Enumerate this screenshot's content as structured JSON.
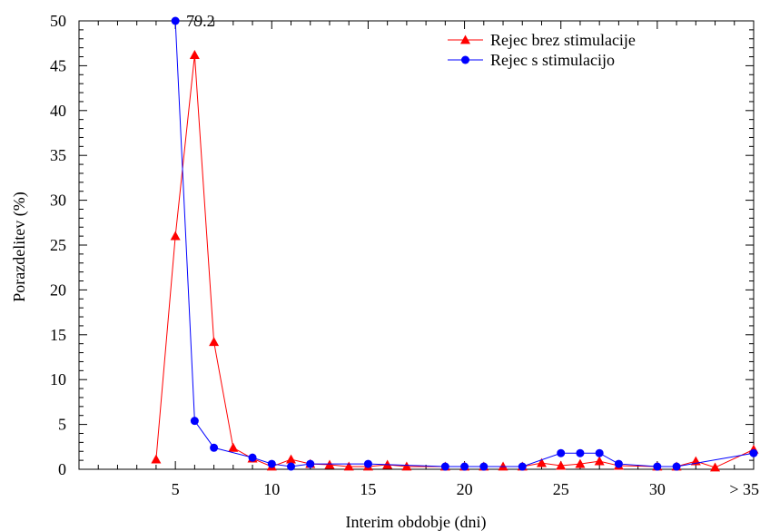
{
  "chart_data": {
    "type": "line",
    "xlabel": "Interim obdobje (dni)",
    "ylabel": "Porazdelitev (%)",
    "xlim": [
      0,
      35
    ],
    "ylim": [
      0,
      50
    ],
    "x_ticks": [
      {
        "value": 5,
        "label": "5"
      },
      {
        "value": 10,
        "label": "10"
      },
      {
        "value": 15,
        "label": "15"
      },
      {
        "value": 20,
        "label": "20"
      },
      {
        "value": 25,
        "label": "25"
      },
      {
        "value": 30,
        "label": "30"
      },
      {
        "value": 35,
        "label": "> 35"
      }
    ],
    "y_ticks": [
      0,
      5,
      10,
      15,
      20,
      25,
      30,
      35,
      40,
      45,
      50
    ],
    "legend_position": "top-right",
    "grid": false,
    "series": [
      {
        "name": "Rejec brez stimulacije",
        "color": "#ff0000",
        "marker": "triangle",
        "x": [
          4,
          5,
          6,
          7,
          8,
          9,
          10,
          11,
          12,
          13,
          14,
          15,
          16,
          17,
          19,
          20,
          21,
          22,
          23,
          24,
          25,
          26,
          27,
          28,
          30,
          31,
          32,
          33,
          35
        ],
        "y": [
          1.1,
          26,
          46.2,
          14.2,
          2.4,
          1.2,
          0.3,
          1.1,
          0.6,
          0.5,
          0.3,
          0.3,
          0.5,
          0.3,
          0.3,
          0.3,
          0.3,
          0.3,
          0.3,
          0.7,
          0.4,
          0.6,
          0.9,
          0.4,
          0.3,
          0.3,
          0.9,
          0.2,
          2.2
        ]
      },
      {
        "name": "Rejec s stimulacijo",
        "color": "#0000ff",
        "marker": "circle",
        "x": [
          5,
          6,
          7,
          9,
          10,
          11,
          12,
          15,
          19,
          20,
          21,
          23,
          25,
          26,
          27,
          28,
          30,
          31,
          35
        ],
        "y": [
          50,
          5.4,
          2.4,
          1.3,
          0.6,
          0.3,
          0.6,
          0.6,
          0.3,
          0.3,
          0.3,
          0.3,
          1.8,
          1.8,
          1.8,
          0.6,
          0.3,
          0.3,
          1.8
        ]
      }
    ],
    "annotations": [
      {
        "text": "79.2",
        "series": 1,
        "point": 0
      }
    ]
  }
}
